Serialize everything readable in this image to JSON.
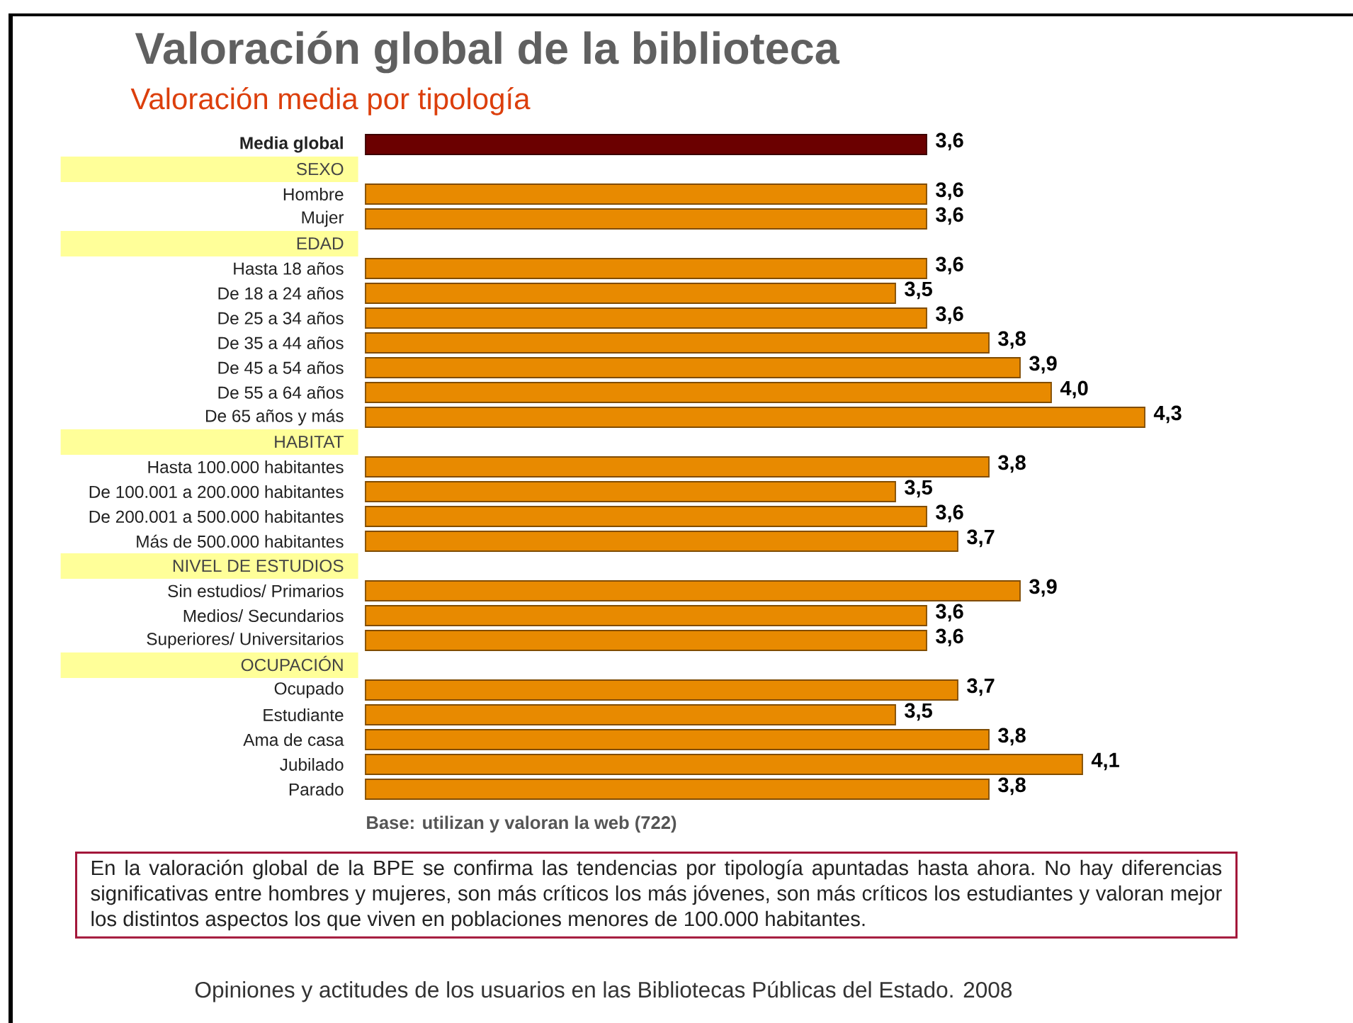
{
  "chart_data": {
    "type": "bar",
    "orientation": "horizontal",
    "title": "Valoración global de la biblioteca",
    "subtitle": "Valoración media por tipología",
    "categories": [
      "**Media global**",
      "SEXO",
      "Hombre",
      "Mujer",
      "EDAD",
      "Hasta 18 años",
      "De 18 a 24 años",
      "De 25 a 34 años",
      "De 35 a 44 años",
      "De 45 a 54 años",
      "De 55 a 64 años",
      "De 65 años y más",
      "HABITAT",
      "Hasta 100.000 habitantes",
      "De 100.001 a 200.000 habitantes",
      "De 200.001 a 500.000 habitantes",
      "Más de 500.000 habitantes",
      "NIVEL DE ESTUDIOS",
      "Sin estudios/ Primarios",
      "Medios/ Secundarios",
      "Superiores/ Universitarios",
      "OCUPACIÓN",
      "Ocupado",
      "Estudiante",
      "Ama de casa",
      "Jubilado",
      "Parado"
    ],
    "values": [
      3.6,
      null,
      3.6,
      3.6,
      null,
      3.6,
      3.5,
      3.6,
      3.8,
      3.9,
      4.0,
      4.3,
      null,
      3.8,
      3.5,
      3.6,
      3.7,
      null,
      3.9,
      3.6,
      3.6,
      null,
      3.7,
      3.5,
      3.8,
      4.1,
      3.8
    ],
    "value_labels": [
      "3,6",
      null,
      "3,6",
      "3,6",
      null,
      "3,6",
      "3,5",
      "3,6",
      "3,8",
      "3,9",
      "4,0",
      "4,3",
      null,
      "3,8",
      "3,5",
      "3,6",
      "3,7",
      null,
      "3,9",
      "3,6",
      "3,6",
      null,
      "3,7",
      "3,5",
      "3,8",
      "4,1",
      "3,8"
    ],
    "colors": [
      "#6b0000",
      null,
      "#e88a00",
      "#e88a00",
      null,
      "#e88a00",
      "#e88a00",
      "#e88a00",
      "#e88a00",
      "#e88a00",
      "#e88a00",
      "#e88a00",
      null,
      "#e88a00",
      "#e88a00",
      "#e88a00",
      "#e88a00",
      null,
      "#e88a00",
      "#e88a00",
      "#e88a00",
      null,
      "#e88a00",
      "#e88a00",
      "#e88a00",
      "#e88a00",
      "#e88a00"
    ],
    "xlim": [
      1.8,
      4.3
    ],
    "tick_labels": "y",
    "annotations": [
      "Base: utilizan y valoran la web (722)",
      "En la valoración global de la BPE se confirma las tendencias por tipología apuntadas hasta ahora. No hay diferencias significativas entre hombres y mujeres, son más críticos los más jóvenes, son más críticos los estudiantes y valoran mejor los distintos aspectos los que viven en poblaciones menores de 100.000 habitantes.",
      "Opiniones y actitudes de los usuarios en las Bibliotecas Públicas del Estado. 2008"
    ]
  }
}
